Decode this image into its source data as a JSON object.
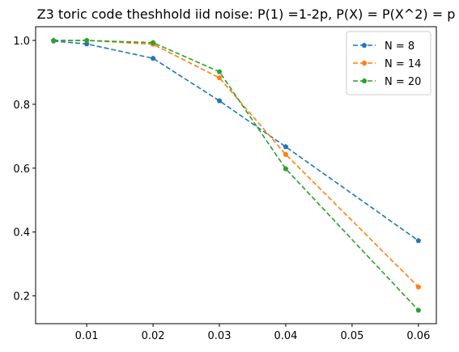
{
  "chart_data": {
    "type": "line",
    "title": "Z3 toric code theshhold iid noise: P(1) =1-2p, P(X) = P(X^2) = p",
    "xlabel": "",
    "ylabel": "",
    "x": [
      0.005,
      0.01,
      0.02,
      0.03,
      0.04,
      0.06
    ],
    "xlim": [
      0.0023,
      0.0627
    ],
    "ylim": [
      0.113,
      1.043
    ],
    "xticks": [
      0.01,
      0.02,
      0.03,
      0.04,
      0.05,
      0.06
    ],
    "xtick_labels": [
      "0.01",
      "0.02",
      "0.03",
      "0.04",
      "0.05",
      "0.06"
    ],
    "yticks": [
      0.2,
      0.4,
      0.6,
      0.8,
      1.0
    ],
    "ytick_labels": [
      "0.2",
      "0.4",
      "0.6",
      "0.8",
      "1.0"
    ],
    "grid": false,
    "legend_position": "top-right",
    "line_style": "dashed",
    "marker": "pentagon",
    "series": [
      {
        "name": "N = 8",
        "color": "#1f77b4",
        "values": [
          0.998,
          0.989,
          0.944,
          0.811,
          0.667,
          0.373
        ]
      },
      {
        "name": "N = 14",
        "color": "#ff7f0e",
        "values": [
          1.0,
          1.0,
          0.988,
          0.883,
          0.643,
          0.228
        ]
      },
      {
        "name": "N = 20",
        "color": "#2ca02c",
        "values": [
          1.0,
          1.0,
          0.993,
          0.902,
          0.598,
          0.155
        ]
      }
    ]
  }
}
